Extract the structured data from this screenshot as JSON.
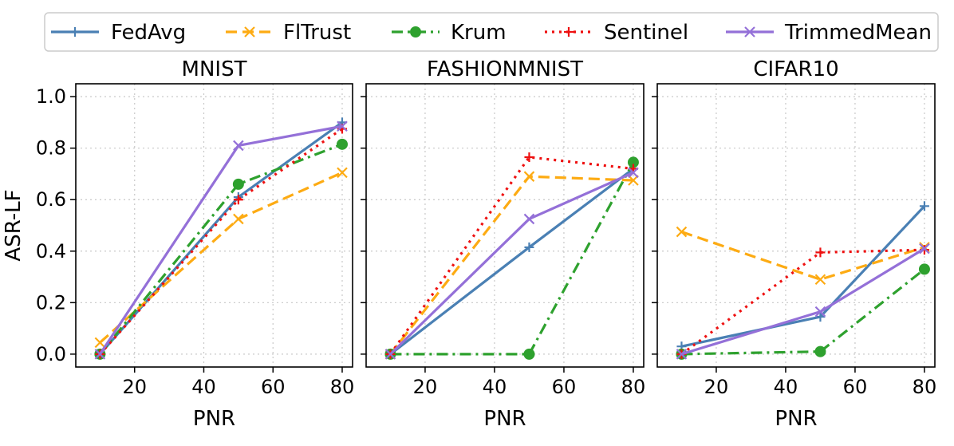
{
  "chart_data": {
    "type": "line",
    "shared_y_label": "ASR-LF",
    "x": [
      10,
      50,
      80
    ],
    "legend": {
      "placement": "top",
      "entries": [
        {
          "name": "FedAvg",
          "color": "#4a80b4",
          "dash": "solid",
          "marker": "plus"
        },
        {
          "name": "FlTrust",
          "color": "#fdab13",
          "dash": "dashed",
          "marker": "x"
        },
        {
          "name": "Krum",
          "color": "#2ea12e",
          "dash": "dashdot",
          "marker": "circle"
        },
        {
          "name": "Sentinel",
          "color": "#ee1111",
          "dash": "dotted",
          "marker": "plus"
        },
        {
          "name": "TrimmedMean",
          "color": "#9470d8",
          "dash": "solid",
          "marker": "x"
        }
      ]
    },
    "xlim": [
      3,
      83
    ],
    "ylim": [
      -0.05,
      1.05
    ],
    "xticks": [
      20,
      40,
      60,
      80
    ],
    "yticks": [
      0.0,
      0.2,
      0.4,
      0.6,
      0.8,
      1.0
    ],
    "yticklabels": [
      "0.0",
      "0.2",
      "0.4",
      "0.6",
      "0.8",
      "1.0"
    ],
    "grid": true,
    "panels": [
      {
        "title": "MNIST",
        "xlabel": "PNR",
        "series": [
          {
            "name": "FedAvg",
            "values": [
              0.0,
              0.61,
              0.9
            ]
          },
          {
            "name": "FlTrust",
            "values": [
              0.045,
              0.525,
              0.705
            ]
          },
          {
            "name": "Krum",
            "values": [
              0.0,
              0.66,
              0.815
            ]
          },
          {
            "name": "Sentinel",
            "values": [
              0.0,
              0.6,
              0.875
            ]
          },
          {
            "name": "TrimmedMean",
            "values": [
              0.0,
              0.81,
              0.885
            ]
          }
        ]
      },
      {
        "title": "FASHIONMNIST",
        "xlabel": "PNR",
        "series": [
          {
            "name": "FedAvg",
            "values": [
              0.0,
              0.415,
              0.72
            ]
          },
          {
            "name": "FlTrust",
            "values": [
              0.0,
              0.69,
              0.675
            ]
          },
          {
            "name": "Krum",
            "values": [
              0.0,
              0.0,
              0.745
            ]
          },
          {
            "name": "Sentinel",
            "values": [
              0.0,
              0.765,
              0.72
            ]
          },
          {
            "name": "TrimmedMean",
            "values": [
              0.0,
              0.525,
              0.705
            ]
          }
        ]
      },
      {
        "title": "CIFAR10",
        "xlabel": "PNR",
        "series": [
          {
            "name": "FedAvg",
            "values": [
              0.03,
              0.145,
              0.575
            ]
          },
          {
            "name": "FlTrust",
            "values": [
              0.475,
              0.29,
              0.415
            ]
          },
          {
            "name": "Krum",
            "values": [
              0.0,
              0.01,
              0.33
            ]
          },
          {
            "name": "Sentinel",
            "values": [
              0.0,
              0.395,
              0.405
            ]
          },
          {
            "name": "TrimmedMean",
            "values": [
              0.0,
              0.165,
              0.41
            ]
          }
        ]
      }
    ]
  }
}
